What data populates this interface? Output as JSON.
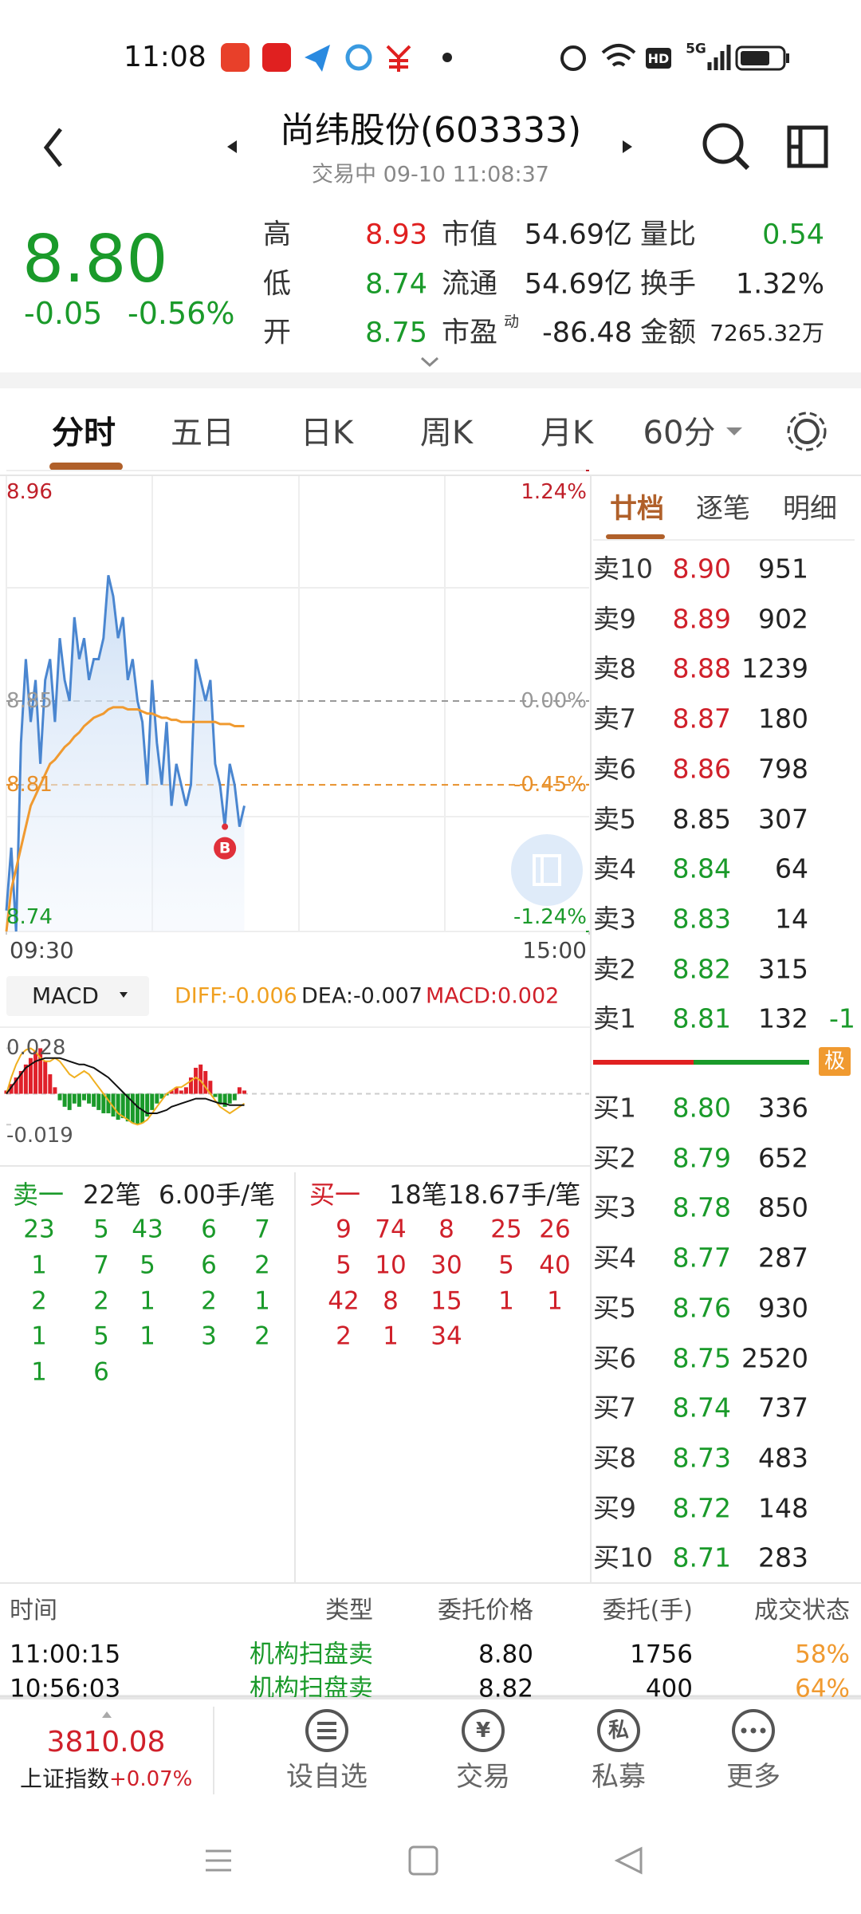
{
  "status_bar": {
    "time": "11:08",
    "hd": "HD",
    "network": "5G"
  },
  "header": {
    "title": "尚纬股份(603333)",
    "subtitle": "交易中 09-10 11:08:37"
  },
  "quote": {
    "price": "8.80",
    "change": "-0.05",
    "change_pct": "-0.56%",
    "color": "#1a9a2a",
    "stats": [
      {
        "label": "高",
        "value": "8.93",
        "color": "#e02020"
      },
      {
        "label": "市值",
        "value": "54.69亿",
        "color": "#222222"
      },
      {
        "label": "量比",
        "value": "0.54",
        "color": "#1a9a2a"
      },
      {
        "label": "低",
        "value": "8.74",
        "color": "#1a9a2a"
      },
      {
        "label": "流通",
        "value": "54.69亿",
        "color": "#222222"
      },
      {
        "label": "换手",
        "value": "1.32%",
        "color": "#222222"
      },
      {
        "label": "开",
        "value": "8.75",
        "color": "#1a9a2a"
      },
      {
        "label": "市盈",
        "sup": "动",
        "value": "-86.48",
        "color": "#222222"
      },
      {
        "label": "金额",
        "value": "7265.32万",
        "color": "#222222"
      }
    ]
  },
  "tabs": [
    "分时",
    "五日",
    "日K",
    "周K",
    "月K",
    "60分"
  ],
  "intraday": {
    "type": "line",
    "xlim": [
      0,
      240
    ],
    "xticks": [
      {
        "value": 0,
        "label": "09:30"
      },
      {
        "value": 240,
        "label": "15:00"
      }
    ],
    "ylim": [
      8.74,
      8.96
    ],
    "yticks": [
      8.96,
      8.85,
      8.81,
      8.74
    ],
    "y2lim": [
      -1.24,
      1.24
    ],
    "y2ticks": [
      {
        "value": 1.24,
        "label": "1.24%"
      },
      {
        "value": 0,
        "label": "0.00%"
      },
      {
        "value": -0.45,
        "label": "-0.45%"
      },
      {
        "value": -1.24,
        "label": "-1.24%"
      }
    ],
    "tick_colors": [
      "#c0202a",
      "#999999",
      "#e8902a",
      "#1a9a2a"
    ],
    "x": [
      0,
      2,
      4,
      6,
      8,
      10,
      12,
      14,
      16,
      18,
      20,
      22,
      24,
      26,
      28,
      30,
      32,
      34,
      36,
      38,
      40,
      42,
      44,
      46,
      48,
      50,
      52,
      54,
      56,
      58,
      60,
      62,
      64,
      66,
      68,
      70,
      72,
      74,
      76,
      78,
      80,
      82,
      84,
      86,
      88,
      90,
      92,
      94,
      96,
      98
    ],
    "series": [
      {
        "name": "price",
        "color": "#4a86d0",
        "values": [
          8.75,
          8.78,
          8.74,
          8.83,
          8.87,
          8.84,
          8.86,
          8.82,
          8.86,
          8.87,
          8.84,
          8.88,
          8.86,
          8.85,
          8.89,
          8.87,
          8.88,
          8.86,
          8.87,
          8.87,
          8.88,
          8.91,
          8.9,
          8.88,
          8.89,
          8.86,
          8.87,
          8.85,
          8.84,
          8.81,
          8.86,
          8.83,
          8.81,
          8.84,
          8.8,
          8.82,
          8.81,
          8.8,
          8.81,
          8.87,
          8.86,
          8.85,
          8.86,
          8.82,
          8.81,
          8.79,
          8.82,
          8.81,
          8.79,
          8.8
        ]
      },
      {
        "name": "average",
        "color": "#f09a30",
        "values": [
          8.74,
          8.76,
          8.77,
          8.78,
          8.79,
          8.8,
          8.805,
          8.81,
          8.815,
          8.82,
          8.822,
          8.825,
          8.828,
          8.83,
          8.833,
          8.835,
          8.838,
          8.84,
          8.842,
          8.843,
          8.844,
          8.846,
          8.847,
          8.847,
          8.847,
          8.846,
          8.846,
          8.846,
          8.845,
          8.844,
          8.844,
          8.843,
          8.842,
          8.842,
          8.841,
          8.841,
          8.84,
          8.84,
          8.84,
          8.84,
          8.84,
          8.84,
          8.84,
          8.84,
          8.839,
          8.839,
          8.839,
          8.838,
          8.838,
          8.838
        ]
      }
    ],
    "buy_marker": {
      "label": "B",
      "x": 90,
      "value": 8.79
    }
  },
  "order_book": {
    "tabs": [
      "廿档",
      "逐笔",
      "明细"
    ],
    "asks": [
      {
        "label": "卖10",
        "price": "8.90",
        "volume": 951,
        "color": "#d0202a"
      },
      {
        "label": "卖9",
        "price": "8.89",
        "volume": 902,
        "color": "#d0202a"
      },
      {
        "label": "卖8",
        "price": "8.88",
        "volume": 1239,
        "color": "#d0202a"
      },
      {
        "label": "卖7",
        "price": "8.87",
        "volume": 180,
        "color": "#d0202a"
      },
      {
        "label": "卖6",
        "price": "8.86",
        "volume": 798,
        "color": "#d0202a"
      },
      {
        "label": "卖5",
        "price": "8.85",
        "volume": 307,
        "color": "#222222"
      },
      {
        "label": "卖4",
        "price": "8.84",
        "volume": 64,
        "color": "#1a9a2a"
      },
      {
        "label": "卖3",
        "price": "8.83",
        "volume": 14,
        "color": "#1a9a2a"
      },
      {
        "label": "卖2",
        "price": "8.82",
        "volume": 315,
        "color": "#1a9a2a"
      },
      {
        "label": "卖1",
        "price": "8.81",
        "volume": 132,
        "color": "#1a9a2a"
      }
    ],
    "ask1_change": "-1",
    "badge": "极",
    "bids": [
      {
        "label": "买1",
        "price": "8.80",
        "volume": 336,
        "color": "#1a9a2a"
      },
      {
        "label": "买2",
        "price": "8.79",
        "volume": 652,
        "color": "#1a9a2a"
      },
      {
        "label": "买3",
        "price": "8.78",
        "volume": 850,
        "color": "#1a9a2a"
      },
      {
        "label": "买4",
        "price": "8.77",
        "volume": 287,
        "color": "#1a9a2a"
      },
      {
        "label": "买5",
        "price": "8.76",
        "volume": 930,
        "color": "#1a9a2a"
      },
      {
        "label": "买6",
        "price": "8.75",
        "volume": 2520,
        "color": "#1a9a2a"
      },
      {
        "label": "买7",
        "price": "8.74",
        "volume": 737,
        "color": "#1a9a2a"
      },
      {
        "label": "买8",
        "price": "8.73",
        "volume": 483,
        "color": "#1a9a2a"
      },
      {
        "label": "买9",
        "price": "8.72",
        "volume": 148,
        "color": "#1a9a2a"
      },
      {
        "label": "买10",
        "price": "8.71",
        "volume": 283,
        "color": "#1a9a2a"
      }
    ]
  },
  "macd": {
    "type": "bar",
    "selector": "MACD",
    "legend": [
      {
        "text": "DIFF:-0.006",
        "color": "#f0a020"
      },
      {
        "text": "DEA:-0.007",
        "color": "#222222"
      },
      {
        "text": "MACD:0.002",
        "color": "#d0202a"
      }
    ],
    "ylim": [
      -0.04,
      0.04
    ],
    "yticks": [
      0.028,
      -0.019
    ],
    "up_color": "#e0202a",
    "down_color": "#1a9a2a",
    "histogram": [
      0.002,
      0.006,
      0.01,
      0.014,
      0.018,
      0.022,
      0.026,
      0.028,
      0.02,
      0.012,
      0.004,
      -0.004,
      -0.008,
      -0.01,
      -0.006,
      -0.008,
      -0.004,
      -0.006,
      -0.008,
      -0.01,
      -0.012,
      -0.012,
      -0.014,
      -0.016,
      -0.015,
      -0.017,
      -0.018,
      -0.019,
      -0.018,
      -0.014,
      -0.01,
      -0.006,
      -0.003,
      -0.001,
      0.002,
      0.004,
      0.002,
      0.004,
      0.01,
      0.016,
      0.018,
      0.014,
      0.008,
      -0.002,
      -0.006,
      -0.008,
      -0.006,
      -0.004,
      0.004,
      0.002
    ],
    "lines": [
      {
        "name": "DIFF",
        "color": "#f0b020",
        "values": [
          0.0,
          0.01,
          0.018,
          0.024,
          0.027,
          0.028,
          0.026,
          0.022,
          0.02,
          0.02,
          0.022,
          0.02,
          0.016,
          0.012,
          0.01,
          0.012,
          0.014,
          0.012,
          0.008,
          0.004,
          0.0,
          -0.004,
          -0.008,
          -0.012,
          -0.014,
          -0.016,
          -0.018,
          -0.019,
          -0.018,
          -0.016,
          -0.012,
          -0.008,
          -0.004,
          0.0,
          0.002,
          0.004,
          0.004,
          0.006,
          0.008,
          0.01,
          0.008,
          0.004,
          0.0,
          -0.004,
          -0.008,
          -0.01,
          -0.012,
          -0.01,
          -0.008,
          -0.006
        ]
      },
      {
        "name": "DEA",
        "color": "#111111",
        "values": [
          0.0,
          0.004,
          0.008,
          0.012,
          0.016,
          0.018,
          0.02,
          0.021,
          0.022,
          0.022,
          0.022,
          0.022,
          0.021,
          0.02,
          0.019,
          0.018,
          0.018,
          0.017,
          0.016,
          0.014,
          0.012,
          0.01,
          0.007,
          0.004,
          0.001,
          -0.002,
          -0.005,
          -0.008,
          -0.01,
          -0.012,
          -0.012,
          -0.012,
          -0.011,
          -0.01,
          -0.008,
          -0.007,
          -0.006,
          -0.005,
          -0.004,
          -0.003,
          -0.003,
          -0.003,
          -0.004,
          -0.005,
          -0.006,
          -0.006,
          -0.007,
          -0.007,
          -0.007,
          -0.007
        ]
      }
    ]
  },
  "trade_stats": {
    "sell": {
      "label": "卖一",
      "count": "22笔",
      "avg": "6.00手/笔",
      "color": "#1a9a2a",
      "values": [
        [
          23,
          5,
          43,
          6,
          7
        ],
        [
          1,
          7,
          5,
          6,
          2
        ],
        [
          2,
          2,
          1,
          2,
          1
        ],
        [
          1,
          5,
          1,
          3,
          2
        ],
        [
          1,
          6
        ]
      ]
    },
    "buy": {
      "label": "买一",
      "count": "18笔",
      "avg": "18.67手/笔",
      "color": "#d0202a",
      "values": [
        [
          9,
          74,
          8,
          25,
          26
        ],
        [
          5,
          10,
          30,
          5,
          40
        ],
        [
          42,
          8,
          15,
          1,
          1
        ],
        [
          2,
          1,
          34
        ]
      ]
    }
  },
  "orders_table": {
    "columns": [
      "时间",
      "类型",
      "委托价格",
      "委托(手)",
      "成交状态"
    ],
    "rows": [
      [
        "11:00:15",
        "机构扫盘卖",
        "8.80",
        "1756",
        "58%"
      ],
      [
        "10:56:03",
        "机构扫盘卖",
        "8.82",
        "400",
        "64%"
      ]
    ]
  },
  "bottom_nav": {
    "index_value": "3810.08",
    "index_name": "上证指数",
    "index_change": "+0.07%",
    "items": [
      {
        "label": "设自选"
      },
      {
        "label": "交易",
        "icon": "¥"
      },
      {
        "label": "私募",
        "icon": "私"
      },
      {
        "label": "更多"
      }
    ]
  }
}
